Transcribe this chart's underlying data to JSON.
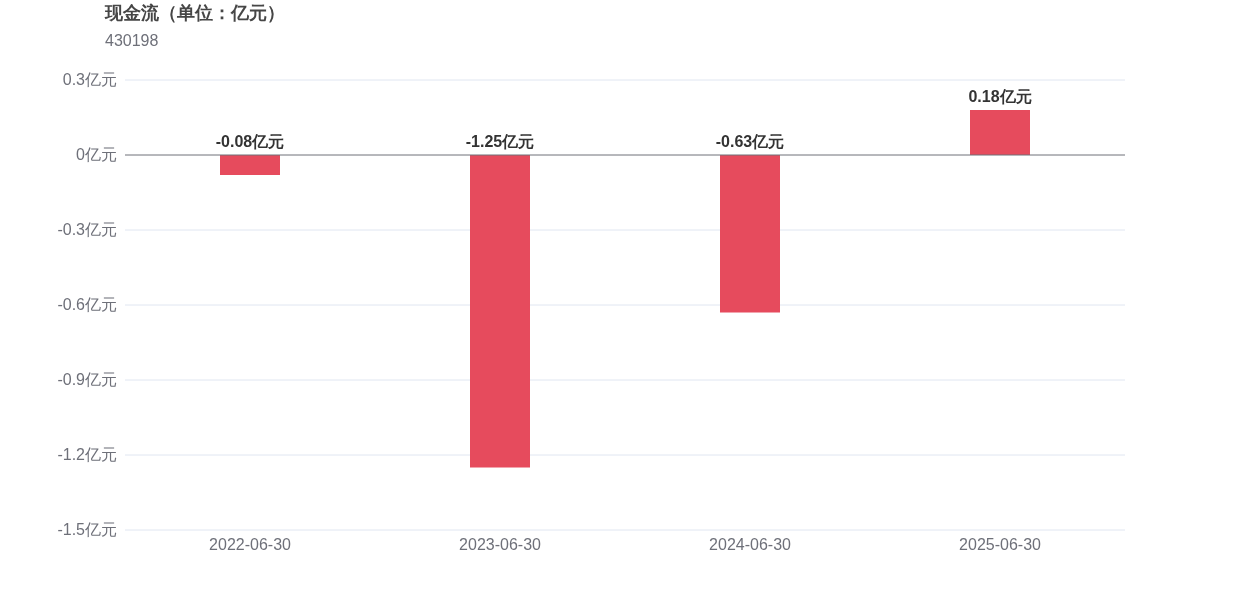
{
  "chart_data": {
    "type": "bar",
    "title": "现金流（单位：亿元）",
    "subtitle": "430198",
    "categories": [
      "2022-06-30",
      "2023-06-30",
      "2024-06-30",
      "2025-06-30"
    ],
    "series": [
      {
        "color": "#e64b5d",
        "values": [
          -0.08,
          -1.25,
          -0.63,
          0.18
        ],
        "value_labels": [
          "-0.08亿元",
          "-1.25亿元",
          "-0.63亿元",
          "0.18亿元"
        ]
      }
    ],
    "ylim": [
      -1.5,
      0.3
    ],
    "yticks": [
      {
        "value": 0.3,
        "label": "0.3亿元"
      },
      {
        "value": 0,
        "label": "0亿元"
      },
      {
        "value": -0.3,
        "label": "-0.3亿元"
      },
      {
        "value": -0.6,
        "label": "-0.6亿元"
      },
      {
        "value": -0.9,
        "label": "-0.9亿元"
      },
      {
        "value": -1.2,
        "label": "-1.2亿元"
      },
      {
        "value": -1.5,
        "label": "-1.5亿元"
      }
    ],
    "grid": "y"
  }
}
